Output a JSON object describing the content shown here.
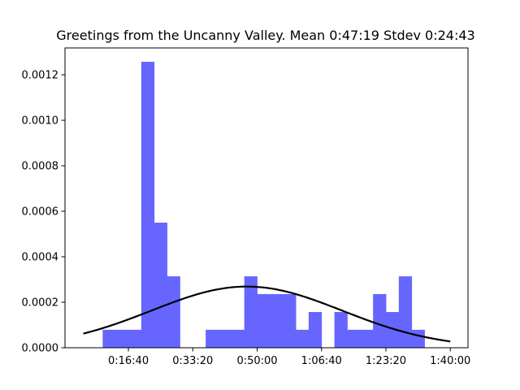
{
  "chart_data": {
    "type": "bar",
    "title": "Greetings from the Uncanny Valley. Mean 0:47:19 Stdev 0:24:43",
    "xlabel": "",
    "ylabel": "",
    "x_unit": "seconds",
    "xlim": [
      15,
      6275
    ],
    "ylim": [
      0,
      0.001318
    ],
    "x_ticks": [
      {
        "value": 1000,
        "label": "0:16:40"
      },
      {
        "value": 2000,
        "label": "0:33:20"
      },
      {
        "value": 3000,
        "label": "0:50:00"
      },
      {
        "value": 4000,
        "label": "1:06:40"
      },
      {
        "value": 5000,
        "label": "1:23:20"
      },
      {
        "value": 6000,
        "label": "1:40:00"
      }
    ],
    "y_ticks": [
      {
        "value": 0.0,
        "label": "0.0000"
      },
      {
        "value": 0.0002,
        "label": "0.0002"
      },
      {
        "value": 0.0004,
        "label": "0.0004"
      },
      {
        "value": 0.0006,
        "label": "0.0006"
      },
      {
        "value": 0.0008,
        "label": "0.0008"
      },
      {
        "value": 0.001,
        "label": "0.0010"
      },
      {
        "value": 0.0012,
        "label": "0.0012"
      }
    ],
    "bar_color": "#6666ff",
    "line_color": "#000000",
    "bins": [
      {
        "x0": 600,
        "x1": 800,
        "density": 7.9e-05
      },
      {
        "x0": 800,
        "x1": 1000,
        "density": 7.9e-05
      },
      {
        "x0": 1000,
        "x1": 1200,
        "density": 7.9e-05
      },
      {
        "x0": 1200,
        "x1": 1400,
        "density": 0.001257
      },
      {
        "x0": 1400,
        "x1": 1600,
        "density": 0.00055
      },
      {
        "x0": 1600,
        "x1": 1800,
        "density": 0.000314
      },
      {
        "x0": 1800,
        "x1": 2000,
        "density": 0.0
      },
      {
        "x0": 2000,
        "x1": 2200,
        "density": 0.0
      },
      {
        "x0": 2200,
        "x1": 2400,
        "density": 7.9e-05
      },
      {
        "x0": 2400,
        "x1": 2600,
        "density": 7.9e-05
      },
      {
        "x0": 2600,
        "x1": 2800,
        "density": 7.9e-05
      },
      {
        "x0": 2800,
        "x1": 3000,
        "density": 0.000314
      },
      {
        "x0": 3000,
        "x1": 3200,
        "density": 0.000236
      },
      {
        "x0": 3200,
        "x1": 3400,
        "density": 0.000236
      },
      {
        "x0": 3400,
        "x1": 3600,
        "density": 0.000236
      },
      {
        "x0": 3600,
        "x1": 3800,
        "density": 7.9e-05
      },
      {
        "x0": 3800,
        "x1": 4000,
        "density": 0.000157
      },
      {
        "x0": 4000,
        "x1": 4200,
        "density": 0.0
      },
      {
        "x0": 4200,
        "x1": 4400,
        "density": 0.000157
      },
      {
        "x0": 4400,
        "x1": 4600,
        "density": 7.9e-05
      },
      {
        "x0": 4600,
        "x1": 4800,
        "density": 7.9e-05
      },
      {
        "x0": 4800,
        "x1": 5000,
        "density": 0.000236
      },
      {
        "x0": 5000,
        "x1": 5200,
        "density": 0.000157
      },
      {
        "x0": 5200,
        "x1": 5400,
        "density": 0.000314
      },
      {
        "x0": 5400,
        "x1": 5600,
        "density": 7.9e-05
      }
    ],
    "normal_curve": {
      "mean": 2839,
      "stdev": 1483,
      "x_range": [
        300,
        6000
      ]
    }
  }
}
